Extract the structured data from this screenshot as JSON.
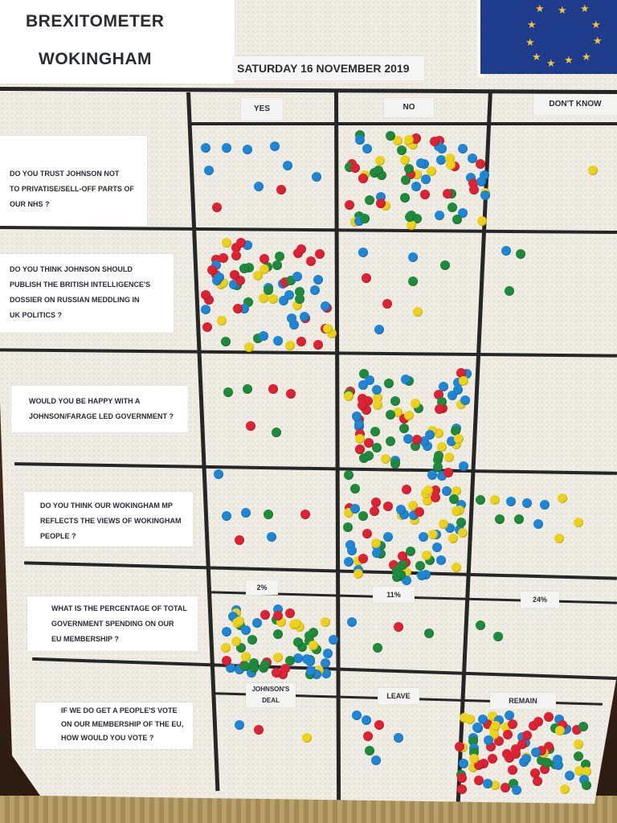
{
  "title": {
    "line1": "BREXITOMETER",
    "line2": "WOKINGHAM"
  },
  "date": "SATURDAY  16 NOVEMBER 2019",
  "flag": {
    "name": "eu-flag-icon",
    "background": "#1f3b8c",
    "star_color": "#f2c53a"
  },
  "dot_colors": {
    "blue": "#1f86d4",
    "red": "#dd2233",
    "green": "#1f8a3c",
    "yellow": "#ecd21c"
  },
  "columns": [
    "YES",
    "NO",
    "DON'T KNOW"
  ],
  "questions": [
    {
      "lines": [
        "DO YOU TRUST JOHNSON NOT",
        "TO PRIVATISE/SELL-OFF PARTS OF",
        "OUR NHS ?"
      ]
    },
    {
      "lines": [
        "DO YOU THINK JOHNSON SHOULD",
        "PUBLISH THE BRITISH INTELLIGENCE'S",
        "DOSSIER ON RUSSIAN MEDDLING IN",
        "UK POLITICS ?"
      ]
    },
    {
      "lines": [
        "WOULD YOU BE HAPPY WITH A",
        "JOHNSON/FARAGE LED GOVERNMENT ?"
      ]
    },
    {
      "lines": [
        "DO YOU THINK OUR WOKINGHAM MP",
        "REFLECTS THE VIEWS OF WOKINGHAM",
        "PEOPLE ?"
      ]
    },
    {
      "lines": [
        "WHAT IS THE PERCENTAGE OF TOTAL",
        "GOVERNMENT SPENDING ON OUR",
        "EU MEMBERSHIP ?"
      ],
      "options": [
        "2%",
        "11%",
        "24%"
      ]
    },
    {
      "lines": [
        "IF WE DO GET A PEOPLE'S VOTE",
        "ON OUR MEMBERSHIP OF THE EU,",
        "HOW WOULD YOU VOTE ?"
      ],
      "options": [
        "JOHNSON'S DEAL",
        "LEAVE",
        "REMAIN"
      ]
    }
  ]
}
